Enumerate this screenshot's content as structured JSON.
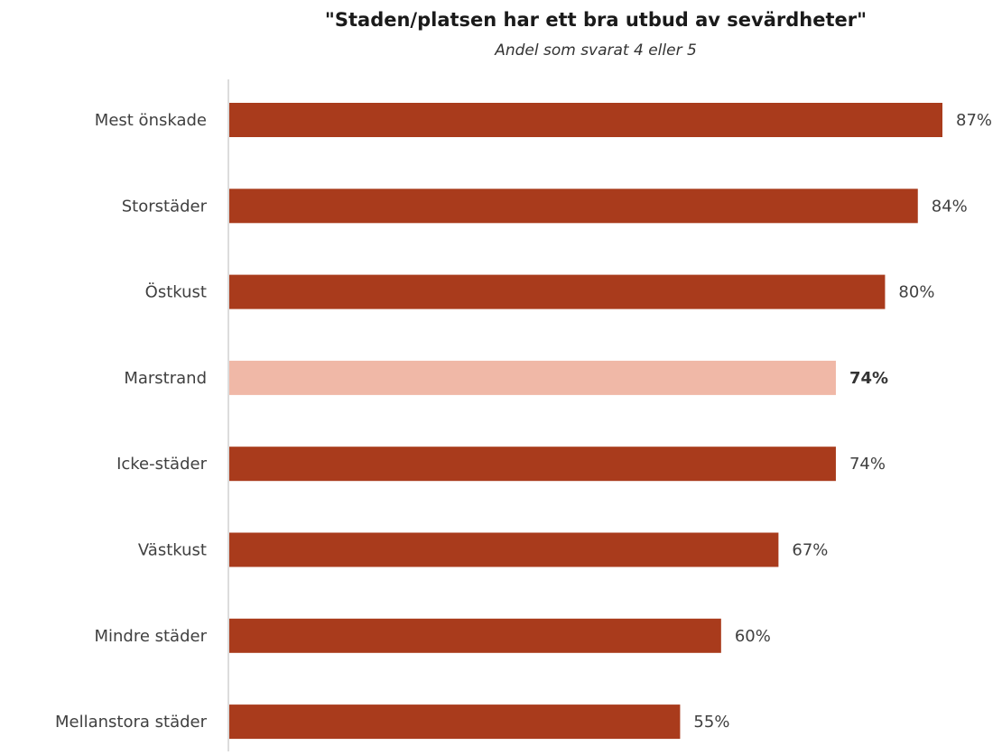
{
  "chart_data": {
    "type": "bar",
    "orientation": "horizontal",
    "title": "\"Staden/platsen har ett bra utbud av sevärdheter\"",
    "subtitle": "Andel som svarat 4 eller 5",
    "categories": [
      "Mest önskade",
      "Storstäder",
      "Östkust",
      "Marstrand",
      "Icke-städer",
      "Västkust",
      "Mindre städer",
      "Mellanstora städer"
    ],
    "values": [
      87,
      84,
      80,
      74,
      74,
      67,
      60,
      55
    ],
    "value_labels": [
      "87%",
      "84%",
      "80%",
      "74%",
      "74%",
      "67%",
      "60%",
      "55%"
    ],
    "highlight_category": "Marstrand",
    "xlim": [
      0,
      100
    ],
    "grid": false,
    "legend": "none",
    "colors": {
      "bar": "#A93B1C",
      "highlight": "#F0B8A7",
      "axis": "#D0D0D0",
      "text": "#404040"
    }
  }
}
